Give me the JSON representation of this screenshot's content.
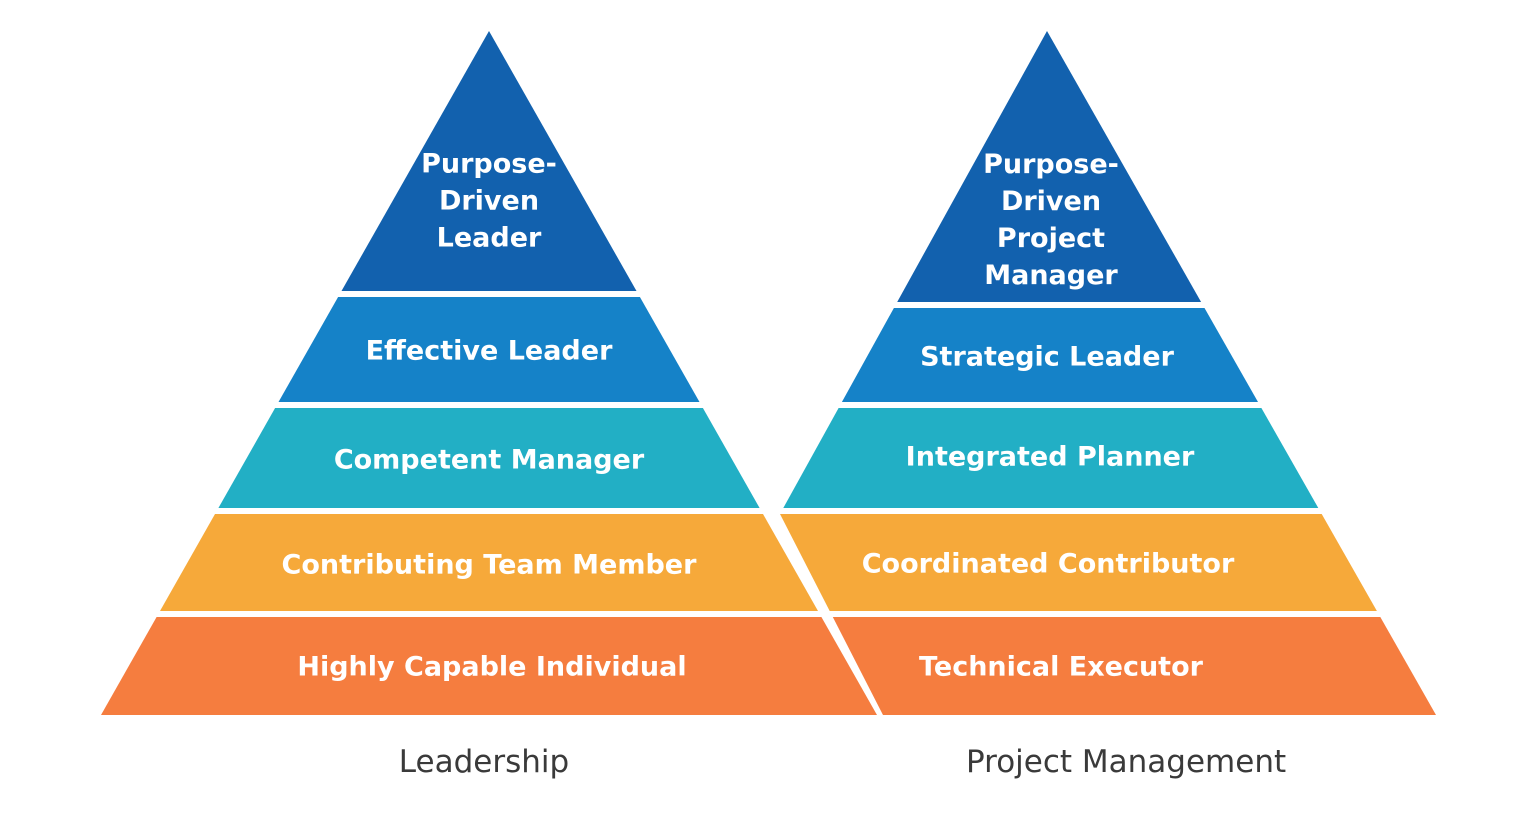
{
  "pyramids": [
    {
      "label": "Leadership",
      "tiers": [
        {
          "lines": [
            "Purpose-",
            "Driven",
            "Leader"
          ],
          "color": "#1261AE"
        },
        {
          "lines": [
            "Effective Leader"
          ],
          "color": "#1582C8"
        },
        {
          "lines": [
            "Competent Manager"
          ],
          "color": "#22AFC5"
        },
        {
          "lines": [
            "Contributing Team Member"
          ],
          "color": "#F6A93A"
        },
        {
          "lines": [
            "Highly Capable Individual"
          ],
          "color": "#F57D3F"
        }
      ]
    },
    {
      "label": "Project Management",
      "tiers": [
        {
          "lines": [
            "Purpose-",
            "Driven",
            "Project",
            "Manager"
          ],
          "color": "#1261AE"
        },
        {
          "lines": [
            "Strategic Leader"
          ],
          "color": "#1582C8"
        },
        {
          "lines": [
            "Integrated Planner"
          ],
          "color": "#22AFC5"
        },
        {
          "lines": [
            "Coordinated Contributor"
          ],
          "color": "#F6A93A"
        },
        {
          "lines": [
            "Technical Executor"
          ],
          "color": "#F57D3F"
        }
      ]
    }
  ]
}
